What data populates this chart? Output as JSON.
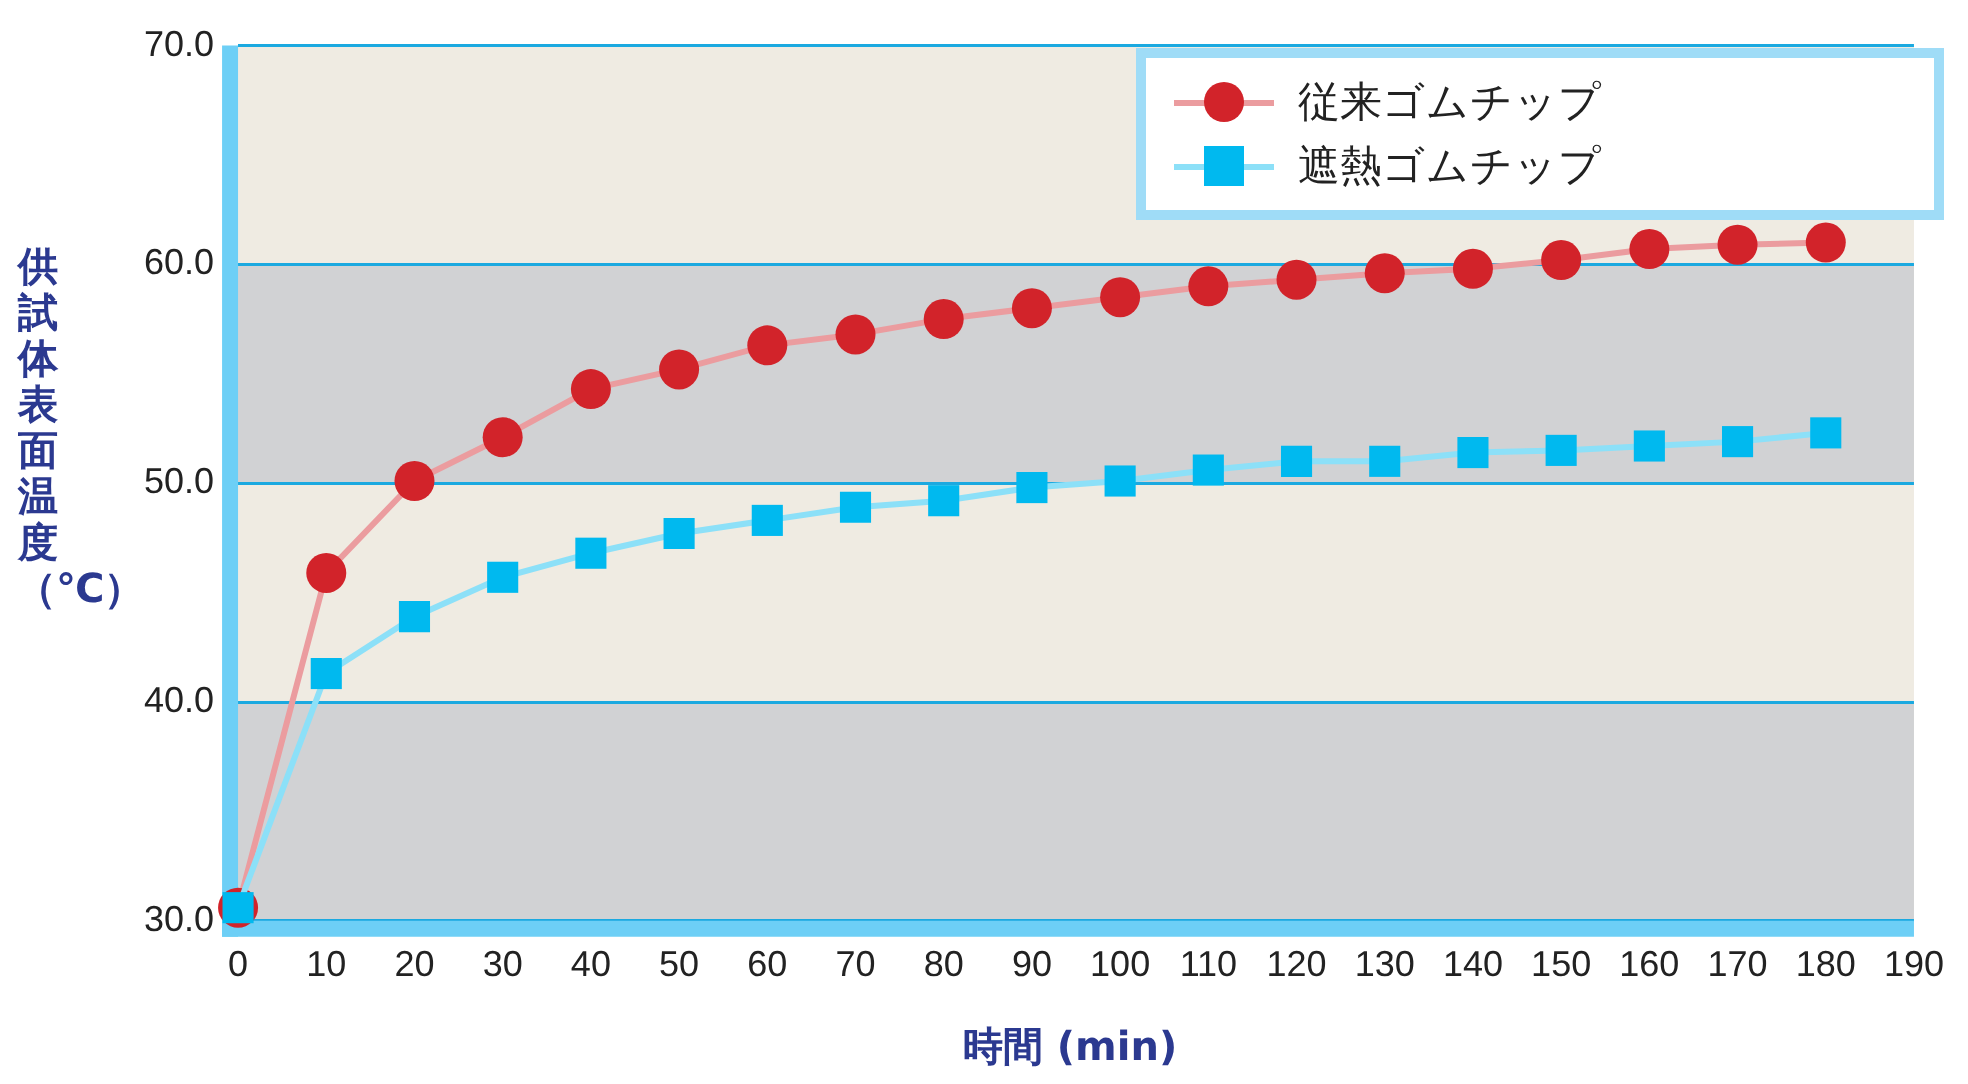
{
  "chart_data": {
    "type": "line",
    "xlabel": "時間 (min)",
    "ylabel": "供試体表面温度（℃）",
    "categories": [
      "0",
      "10",
      "20",
      "30",
      "40",
      "50",
      "60",
      "70",
      "80",
      "90",
      "100",
      "110",
      "120",
      "130",
      "140",
      "150",
      "160",
      "170",
      "180",
      "190"
    ],
    "series": [
      {
        "name": "従来ゴムチップ",
        "color": "#d2232a",
        "marker": "circle",
        "values": [
          30.6,
          45.9,
          50.1,
          52.1,
          54.3,
          55.2,
          56.3,
          56.8,
          57.5,
          58.0,
          58.5,
          59.0,
          59.3,
          59.6,
          59.8,
          60.2,
          60.7,
          60.9,
          61.0,
          null
        ]
      },
      {
        "name": "遮熱ゴムチップ",
        "color": "#00b9ef",
        "marker": "square",
        "values": [
          30.6,
          41.3,
          43.9,
          45.7,
          46.8,
          47.7,
          48.3,
          48.9,
          49.2,
          49.8,
          50.1,
          50.6,
          51.0,
          51.0,
          51.4,
          51.5,
          51.7,
          51.9,
          52.3,
          null
        ]
      }
    ],
    "ylim": [
      30,
      70
    ],
    "yticks": [
      {
        "value": 30,
        "label": "30.0"
      },
      {
        "value": 40,
        "label": "40.0"
      },
      {
        "value": 50,
        "label": "50.0"
      },
      {
        "value": 60,
        "label": "60.0"
      },
      {
        "value": 70,
        "label": "70.0"
      }
    ],
    "bands": [
      {
        "axis": "y",
        "from": 30,
        "to": 40,
        "color": "#d1d2d4"
      },
      {
        "axis": "y",
        "from": 50,
        "to": 60,
        "color": "#d1d2d4"
      }
    ],
    "grid": "y",
    "legend": "top right",
    "line_style": "solid"
  }
}
